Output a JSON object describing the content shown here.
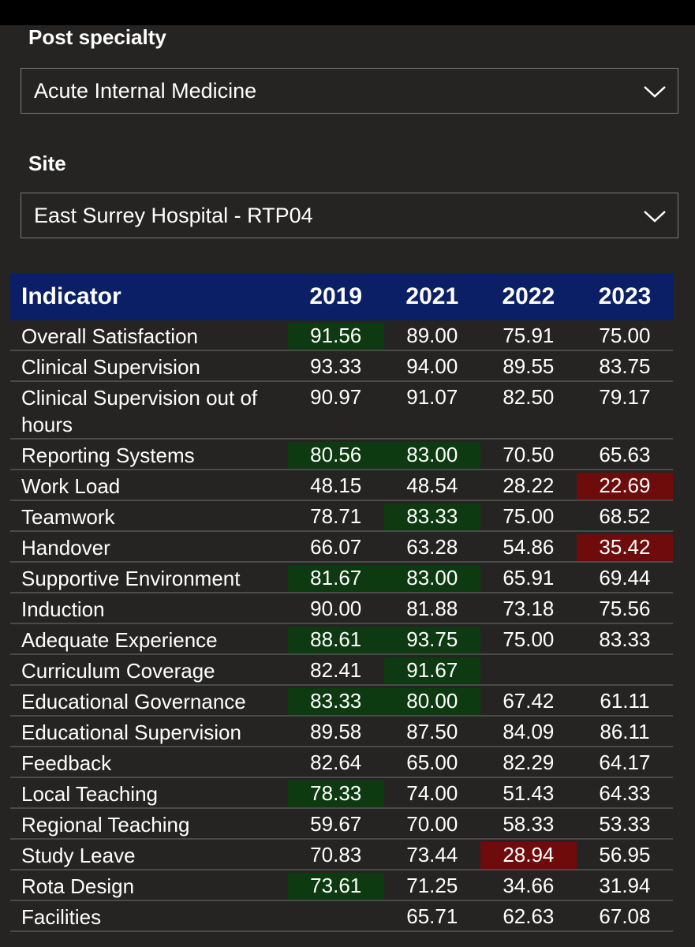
{
  "filters": {
    "post_specialty": {
      "label": "Post specialty",
      "value": "Acute Internal Medicine"
    },
    "site": {
      "label": "Site",
      "value": "East Surrey Hospital - RTP04"
    }
  },
  "table": {
    "headers": [
      "Indicator",
      "2019",
      "2021",
      "2022",
      "2023"
    ],
    "colors": {
      "green": "#0d3a10",
      "red": "#6e0b0b",
      "header": "#0a1f66"
    },
    "rows": [
      {
        "indicator": "Overall Satisfaction",
        "cells": [
          [
            "91.56",
            "green"
          ],
          [
            "89.00",
            ""
          ],
          [
            "75.91",
            ""
          ],
          [
            "75.00",
            ""
          ]
        ]
      },
      {
        "indicator": "Clinical Supervision",
        "cells": [
          [
            "93.33",
            ""
          ],
          [
            "94.00",
            ""
          ],
          [
            "89.55",
            ""
          ],
          [
            "83.75",
            ""
          ]
        ]
      },
      {
        "indicator": "Clinical Supervision out of hours",
        "cells": [
          [
            "90.97",
            ""
          ],
          [
            "91.07",
            ""
          ],
          [
            "82.50",
            ""
          ],
          [
            "79.17",
            ""
          ]
        ]
      },
      {
        "indicator": "Reporting Systems",
        "cells": [
          [
            "80.56",
            "green"
          ],
          [
            "83.00",
            "green"
          ],
          [
            "70.50",
            ""
          ],
          [
            "65.63",
            ""
          ]
        ]
      },
      {
        "indicator": "Work Load",
        "cells": [
          [
            "48.15",
            ""
          ],
          [
            "48.54",
            ""
          ],
          [
            "28.22",
            ""
          ],
          [
            "22.69",
            "red"
          ]
        ]
      },
      {
        "indicator": "Teamwork",
        "cells": [
          [
            "78.71",
            ""
          ],
          [
            "83.33",
            "green"
          ],
          [
            "75.00",
            ""
          ],
          [
            "68.52",
            ""
          ]
        ]
      },
      {
        "indicator": "Handover",
        "cells": [
          [
            "66.07",
            ""
          ],
          [
            "63.28",
            ""
          ],
          [
            "54.86",
            ""
          ],
          [
            "35.42",
            "red"
          ]
        ]
      },
      {
        "indicator": "Supportive Environment",
        "cells": [
          [
            "81.67",
            "green"
          ],
          [
            "83.00",
            "green"
          ],
          [
            "65.91",
            ""
          ],
          [
            "69.44",
            ""
          ]
        ]
      },
      {
        "indicator": "Induction",
        "cells": [
          [
            "90.00",
            ""
          ],
          [
            "81.88",
            ""
          ],
          [
            "73.18",
            ""
          ],
          [
            "75.56",
            ""
          ]
        ]
      },
      {
        "indicator": "Adequate Experience",
        "cells": [
          [
            "88.61",
            "green"
          ],
          [
            "93.75",
            "green"
          ],
          [
            "75.00",
            ""
          ],
          [
            "83.33",
            ""
          ]
        ]
      },
      {
        "indicator": "Curriculum Coverage",
        "cells": [
          [
            "82.41",
            ""
          ],
          [
            "91.67",
            "green"
          ],
          [
            "",
            ""
          ],
          [
            "",
            ""
          ]
        ]
      },
      {
        "indicator": "Educational Governance",
        "cells": [
          [
            "83.33",
            "green"
          ],
          [
            "80.00",
            "green"
          ],
          [
            "67.42",
            ""
          ],
          [
            "61.11",
            ""
          ]
        ]
      },
      {
        "indicator": "Educational Supervision",
        "cells": [
          [
            "89.58",
            ""
          ],
          [
            "87.50",
            ""
          ],
          [
            "84.09",
            ""
          ],
          [
            "86.11",
            ""
          ]
        ]
      },
      {
        "indicator": "Feedback",
        "cells": [
          [
            "82.64",
            ""
          ],
          [
            "65.00",
            ""
          ],
          [
            "82.29",
            ""
          ],
          [
            "64.17",
            ""
          ]
        ]
      },
      {
        "indicator": "Local Teaching",
        "cells": [
          [
            "78.33",
            "green"
          ],
          [
            "74.00",
            ""
          ],
          [
            "51.43",
            ""
          ],
          [
            "64.33",
            ""
          ]
        ]
      },
      {
        "indicator": "Regional Teaching",
        "cells": [
          [
            "59.67",
            ""
          ],
          [
            "70.00",
            ""
          ],
          [
            "58.33",
            ""
          ],
          [
            "53.33",
            ""
          ]
        ]
      },
      {
        "indicator": "Study Leave",
        "cells": [
          [
            "70.83",
            ""
          ],
          [
            "73.44",
            ""
          ],
          [
            "28.94",
            "red"
          ],
          [
            "56.95",
            ""
          ]
        ]
      },
      {
        "indicator": "Rota Design",
        "cells": [
          [
            "73.61",
            "green"
          ],
          [
            "71.25",
            ""
          ],
          [
            "34.66",
            ""
          ],
          [
            "31.94",
            ""
          ]
        ]
      },
      {
        "indicator": "Facilities",
        "cells": [
          [
            "",
            ""
          ],
          [
            "65.71",
            ""
          ],
          [
            "62.63",
            ""
          ],
          [
            "67.08",
            ""
          ]
        ]
      }
    ]
  }
}
